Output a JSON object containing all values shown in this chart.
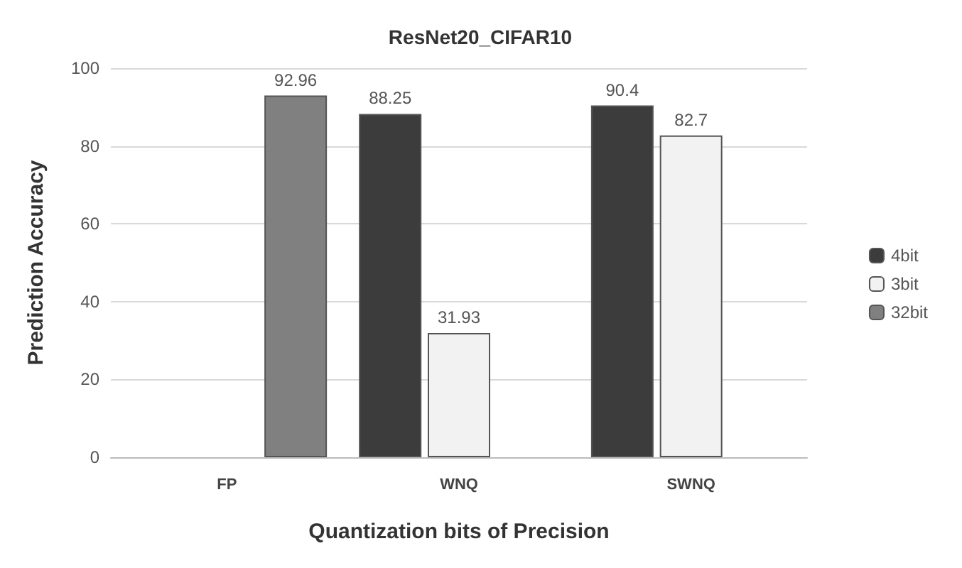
{
  "chart_data": {
    "type": "bar",
    "title": "ResNet20_CIFAR10",
    "xlabel": "Quantization bits of Precision",
    "ylabel": "Prediction Accuracy",
    "categories": [
      "FP",
      "WNQ",
      "SWNQ"
    ],
    "series": [
      {
        "name": "4bit",
        "color": "#3c3c3c",
        "values": [
          null,
          88.25,
          90.4
        ]
      },
      {
        "name": "3bit",
        "color": "#f2f2f2",
        "values": [
          null,
          31.93,
          82.7
        ]
      },
      {
        "name": "32bit",
        "color": "#808080",
        "values": [
          92.96,
          null,
          null
        ]
      }
    ],
    "ylim": [
      0,
      100
    ],
    "yticks": [
      0,
      20,
      40,
      60,
      80,
      100
    ],
    "grid": "y",
    "legend": "right",
    "data_labels": true
  }
}
